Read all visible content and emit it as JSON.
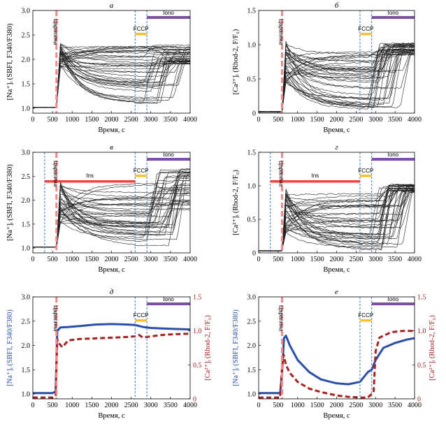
{
  "colors": {
    "scratch": "#f08a8a",
    "fccp_line": "#3d7ac4",
    "fccp_bar": "#f4c430",
    "iono_bar": "#7c4fa8",
    "ins_bar": "#e5473a",
    "na": "#2a4fa8",
    "ca": "#a62121",
    "traces": "#222222"
  },
  "chart_data": [
    {
      "id": "a",
      "type": "line",
      "panel_label": "а",
      "xlabel": "Время, с",
      "ylabel": "[Na⁺]ᵢ (SBFI, F340/F380)",
      "xlim": [
        0,
        4000
      ],
      "ylim": [
        0.9,
        3.0
      ],
      "xticks": [
        "0",
        "500",
        "1000",
        "1500",
        "2000",
        "2500",
        "3000",
        "3500",
        "4000"
      ],
      "yticks": [
        "1.0",
        "1.5",
        "2.0",
        "2.5",
        "3.0"
      ],
      "scratch_label": "Царапина",
      "scratch_time": 600,
      "fccp": {
        "label": "FCCP",
        "start": 2600,
        "end": 2900
      },
      "iono": {
        "label": "Iono",
        "start": 2900,
        "end": 4000
      },
      "traces": {
        "count": 40,
        "kind": "na",
        "baseline": 1.02,
        "peak": [
          1.8,
          2.35
        ],
        "mid": [
          1.1,
          2.3
        ],
        "end": [
          1.9,
          2.3
        ]
      }
    },
    {
      "id": "b",
      "type": "line",
      "panel_label": "б",
      "xlabel": "Время, с",
      "ylabel": "[Ca²⁺]ᵢ (Rhod-2, F/F₀)",
      "xlim": [
        0,
        4000
      ],
      "ylim": [
        0,
        1.5
      ],
      "xticks": [
        "0",
        "500",
        "1000",
        "1500",
        "2000",
        "2500",
        "3000",
        "3500",
        "4000"
      ],
      "yticks": [
        "0",
        "0.5",
        "1.0",
        "1.5"
      ],
      "scratch_label": "Царапина",
      "scratch_time": 600,
      "fccp": {
        "label": "FCCP",
        "start": 2600,
        "end": 2900
      },
      "iono": {
        "label": "Iono",
        "start": 2900,
        "end": 4000
      },
      "traces": {
        "count": 40,
        "kind": "ca",
        "baseline": 0.02,
        "peak": [
          0.4,
          1.05
        ],
        "mid": [
          0.02,
          0.9
        ],
        "end": [
          0.85,
          1.02
        ]
      }
    },
    {
      "id": "c",
      "type": "line",
      "panel_label": "в",
      "xlabel": "Время, с",
      "ylabel": "[Na⁺]ᵢ (SBFI, F340/F380)",
      "xlim": [
        0,
        4000
      ],
      "ylim": [
        0.9,
        3.0
      ],
      "xticks": [
        "0",
        "500",
        "1000",
        "1500",
        "2000",
        "2500",
        "3000",
        "3500",
        "4000"
      ],
      "yticks": [
        "1.0",
        "1.5",
        "2.0",
        "2.5",
        "3.0"
      ],
      "scratch_label": "Царапина",
      "scratch_time": 600,
      "ins": {
        "label": "Ins",
        "start": 300,
        "end": 2600
      },
      "fccp": {
        "label": "FCCP",
        "start": 2600,
        "end": 2900
      },
      "iono": {
        "label": "Iono",
        "start": 2900,
        "end": 4000
      },
      "traces": {
        "count": 40,
        "kind": "na",
        "baseline": 1.02,
        "peak": [
          1.5,
          2.4
        ],
        "mid": [
          1.05,
          2.35
        ],
        "end": [
          1.8,
          2.7
        ]
      }
    },
    {
      "id": "d",
      "type": "line",
      "panel_label": "г",
      "xlabel": "Время, с",
      "ylabel": "[Ca²⁺]ᵢ (Rhod-2, F/F₀)",
      "xlim": [
        0,
        4000
      ],
      "ylim": [
        0,
        1.5
      ],
      "xticks": [
        "0",
        "500",
        "1000",
        "1500",
        "2000",
        "2500",
        "3000",
        "3500",
        "4000"
      ],
      "yticks": [
        "0",
        "0.5",
        "1.0",
        "1.5"
      ],
      "scratch_label": "Царапина",
      "scratch_time": 600,
      "ins": {
        "label": "Ins",
        "start": 300,
        "end": 2600
      },
      "fccp": {
        "label": "FCCP",
        "start": 2600,
        "end": 2900
      },
      "iono": {
        "label": "Iono",
        "start": 2900,
        "end": 4000
      },
      "traces": {
        "count": 40,
        "kind": "ca",
        "baseline": 0.03,
        "peak": [
          0.3,
          1.0
        ],
        "mid": [
          0.02,
          0.95
        ],
        "end": [
          0.9,
          1.02
        ]
      }
    },
    {
      "id": "e",
      "type": "line",
      "panel_label": "д",
      "xlabel": "Время, с",
      "ylabel": "[Na⁺]ᵢ (SBFI, F340/F380)",
      "ylabel_right": "[Ca²⁺]ᵢ (Rhod-2, F/F₀)",
      "xlim": [
        0,
        4000
      ],
      "ylim": [
        0.9,
        3.0
      ],
      "ylim_right": [
        0,
        1.5
      ],
      "xticks": [
        "0",
        "500",
        "1000",
        "1500",
        "2000",
        "2500",
        "3000",
        "3500",
        "4000"
      ],
      "yticks": [
        "1.0",
        "1.5",
        "2.0",
        "2.5",
        "3.0"
      ],
      "yticks_right": [
        "0",
        "0.5",
        "1.0",
        "1.5"
      ],
      "scratch_label": "Царапина",
      "scratch_time": 600,
      "fccp": {
        "label": "FCCP",
        "start": 2600,
        "end": 2900
      },
      "iono": {
        "label": "Iono",
        "start": 2900,
        "end": 4000
      },
      "series": [
        {
          "axis": "left",
          "style": "solid",
          "color_key": "na",
          "x": [
            0,
            500,
            580,
            620,
            700,
            900,
            1200,
            1600,
            2000,
            2400,
            2600,
            2700,
            2800,
            3000,
            3300,
            3600,
            4000
          ],
          "y": [
            1.02,
            1.02,
            1.05,
            2.3,
            2.37,
            2.38,
            2.4,
            2.43,
            2.44,
            2.43,
            2.42,
            2.4,
            2.38,
            2.36,
            2.35,
            2.34,
            2.33
          ]
        },
        {
          "axis": "right",
          "style": "dashed",
          "color_key": "ca",
          "x": [
            0,
            500,
            580,
            620,
            660,
            750,
            900,
            1200,
            1600,
            2000,
            2400,
            2600,
            2700,
            2800,
            3000,
            3300,
            3600,
            4000
          ],
          "y": [
            0.02,
            0.02,
            0.05,
            0.88,
            0.82,
            0.76,
            0.86,
            0.88,
            0.89,
            0.9,
            0.91,
            0.92,
            0.94,
            0.9,
            0.92,
            0.94,
            0.95,
            0.96
          ]
        }
      ]
    },
    {
      "id": "f",
      "type": "line",
      "panel_label": "е",
      "xlabel": "Время, с",
      "ylabel": "[Na⁺]ᵢ (SBFI, F340/F380)",
      "ylabel_right": "[Ca²⁺]ᵢ (Rhod-2, F/F₀)",
      "xlim": [
        0,
        4000
      ],
      "ylim": [
        0.9,
        3.0
      ],
      "ylim_right": [
        0,
        1.5
      ],
      "xticks": [
        "0",
        "500",
        "1000",
        "1500",
        "2000",
        "2500",
        "3000",
        "3500",
        "4000"
      ],
      "yticks": [
        "1.0",
        "1.5",
        "2.0",
        "2.5",
        "3.0"
      ],
      "yticks_right": [
        "0",
        "0.5",
        "1.0",
        "1.5"
      ],
      "scratch_label": "Царапина",
      "scratch_time": 600,
      "fccp": {
        "label": "FCCP",
        "start": 2600,
        "end": 2900
      },
      "iono": {
        "label": "Iono",
        "start": 2900,
        "end": 4000
      },
      "series": [
        {
          "axis": "left",
          "style": "solid",
          "color_key": "na",
          "x": [
            0,
            550,
            600,
            650,
            700,
            800,
            1000,
            1300,
            1600,
            2000,
            2300,
            2600,
            2800,
            2900,
            3000,
            3200,
            3500,
            3800,
            4000
          ],
          "y": [
            1.02,
            1.02,
            1.4,
            2.15,
            2.2,
            2.0,
            1.7,
            1.45,
            1.3,
            1.22,
            1.2,
            1.25,
            1.45,
            1.5,
            1.7,
            1.95,
            2.05,
            2.12,
            2.15
          ]
        },
        {
          "axis": "right",
          "style": "dashed",
          "color_key": "ca",
          "x": [
            0,
            550,
            600,
            640,
            700,
            800,
            1000,
            1300,
            1600,
            2000,
            2300,
            2600,
            2800,
            2950,
            3000,
            3100,
            3400,
            3700,
            4000
          ],
          "y": [
            0.02,
            0.02,
            0.45,
            0.65,
            0.5,
            0.38,
            0.25,
            0.15,
            0.1,
            0.05,
            0.03,
            0.02,
            0.02,
            0.1,
            0.7,
            0.9,
            0.98,
            1.0,
            1.0
          ]
        }
      ]
    }
  ]
}
